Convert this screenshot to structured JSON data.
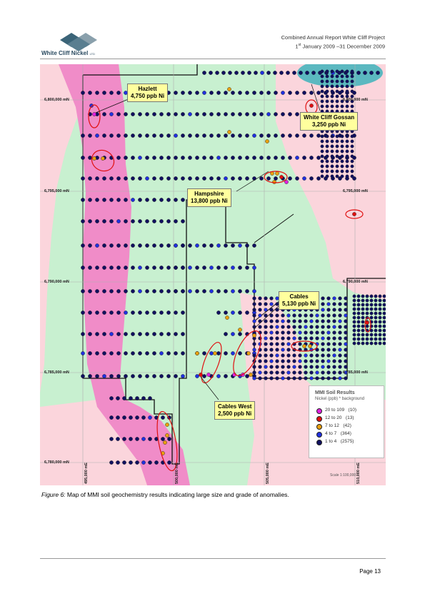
{
  "header": {
    "company_name": "White Cliff Nickel",
    "company_suffix": "LTD",
    "report_title": "Combined Annual Report White Cliff Project",
    "period_day": "1",
    "period_sup": "st",
    "period_rest": " January 2009 –31 December 2009"
  },
  "map": {
    "northings": [
      "6,800,000 mN",
      "6,795,000 mN",
      "6,790,000 mN",
      "6,785,000 mN",
      "6,780,000 mN"
    ],
    "eastings": [
      "495,000 mE",
      "500,000 mE",
      "505,000 mE",
      "510,000 mE"
    ],
    "callouts": [
      {
        "name": "Hazlett",
        "value": "4,750 ppb Ni"
      },
      {
        "name": "White Cliff Gossan",
        "value": "3,250 ppb Ni"
      },
      {
        "name": "Hampshire",
        "value": "13,800 ppb Ni"
      },
      {
        "name": "Cables",
        "value": "5,130 ppb Ni"
      },
      {
        "name": "Cables West",
        "value": "2,500 ppb Ni"
      }
    ],
    "scale_text": "Scale 1:100,000",
    "legend": {
      "title": "MMI Soil Results",
      "subtitle": "Nickel (ppb) * background",
      "items": [
        {
          "label": "20 to 109",
          "count": "(10)",
          "color": "#e020e0"
        },
        {
          "label": "12 to  20",
          "count": "(13)",
          "color": "#e01010"
        },
        {
          "label": "7 to  12",
          "count": "(42)",
          "color": "#e8a010"
        },
        {
          "label": "4 to   7",
          "count": "(364)",
          "color": "#2030e0"
        },
        {
          "label": "1 to   4",
          "count": "(2575)",
          "color": "#101060"
        }
      ]
    },
    "colors": {
      "green": "#c8f0d0",
      "pink_light": "#fbd5dc",
      "magenta": "#f08cc8",
      "water": "#5bb8c0",
      "yellow": "#ffff9e"
    }
  },
  "caption": {
    "label": "Figure 6:",
    "text": " Map of MMI soil geochemistry results indicating large size and grade of anomalies."
  },
  "footer": {
    "page": "Page 13"
  }
}
